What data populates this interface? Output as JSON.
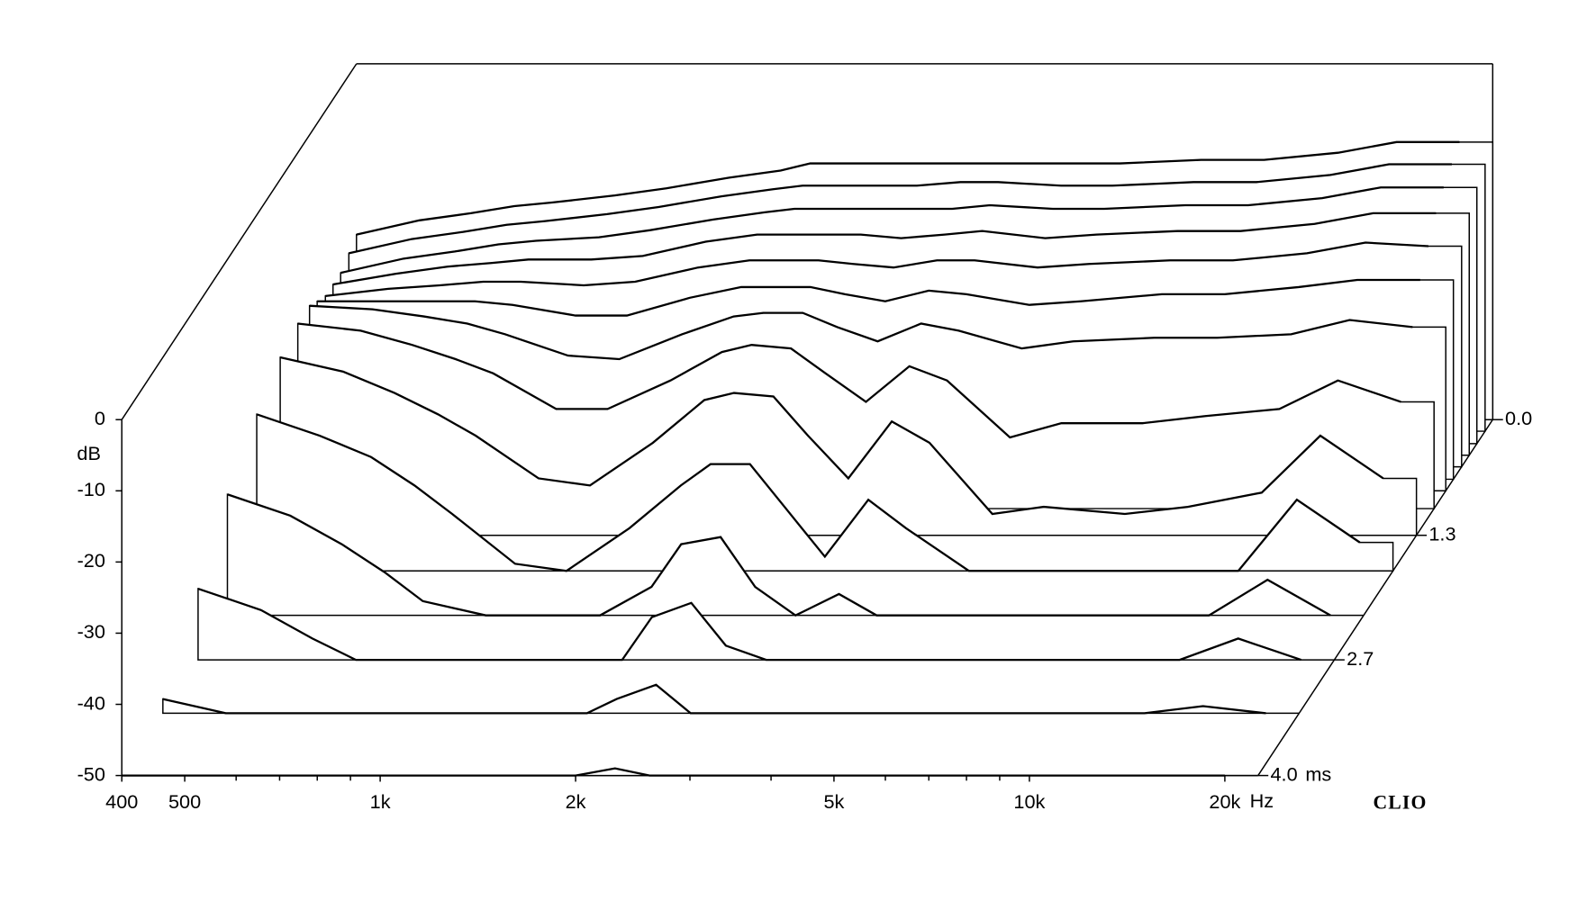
{
  "chart_data": {
    "type": "waterfall",
    "y_label": "dB",
    "x_unit": "Hz",
    "z_unit": "ms",
    "brand": "CLIO",
    "x": [
      400,
      500,
      600,
      700,
      800,
      1000,
      1200,
      1500,
      1800,
      2000,
      2300,
      2600,
      3000,
      3500,
      4000,
      5000,
      6000,
      8000,
      10000,
      13000,
      16000,
      20000
    ],
    "xlim": [
      400,
      22500
    ],
    "log_x": true,
    "xticks": [
      400,
      500,
      {
        "value": 1000,
        "label": "1k"
      },
      {
        "value": 2000,
        "label": "2k"
      },
      {
        "value": 5000,
        "label": "5k"
      },
      {
        "value": 10000,
        "label": "10k"
      },
      {
        "value": 20000,
        "label": "20k"
      }
    ],
    "xminorticks": [
      600,
      700,
      800,
      900,
      3000,
      4000,
      6000,
      7000,
      8000,
      9000
    ],
    "ylim": [
      -50,
      0
    ],
    "yticks": [
      0,
      -10,
      -20,
      -30,
      -40,
      -50
    ],
    "zlim": [
      0,
      4
    ],
    "zticks": [
      {
        "value": 0,
        "label": "0.0"
      },
      1.3,
      2.7,
      {
        "value": 4,
        "label": "4.0"
      }
    ],
    "color": "#000000",
    "series": [
      {
        "z": 0,
        "values": [
          -24,
          -22,
          -21,
          -20,
          -19.5,
          -18.5,
          -17.5,
          -16,
          -15,
          -14,
          -14,
          -14,
          -14,
          -14,
          -14,
          -14,
          -14,
          -13.5,
          -13.5,
          -12.5,
          -11,
          -11
        ]
      },
      {
        "z": 0.13,
        "values": [
          -25,
          -23,
          -22,
          -21,
          -20.5,
          -19.5,
          -18.5,
          -17,
          -16,
          -15.5,
          -15.5,
          -15.5,
          -15.5,
          -15,
          -15,
          -15.5,
          -15.5,
          -15,
          -15,
          -14,
          -12.5,
          -12.5
        ]
      },
      {
        "z": 0.27,
        "values": [
          -26,
          -24,
          -23,
          -22,
          -21.5,
          -21,
          -20,
          -18.5,
          -17.5,
          -17,
          -17,
          -17,
          -17,
          -17,
          -16.5,
          -17,
          -17,
          -16.5,
          -16.5,
          -15.5,
          -14,
          -14
        ]
      },
      {
        "z": 0.4,
        "values": [
          -26,
          -24.5,
          -23.5,
          -23,
          -22.5,
          -22.5,
          -22,
          -20,
          -19,
          -19,
          -19,
          -19,
          -19.5,
          -19,
          -18.5,
          -19.5,
          -19,
          -18.5,
          -18.5,
          -17.5,
          -16,
          -16
        ]
      },
      {
        "z": 0.53,
        "values": [
          -26,
          -25,
          -24.5,
          -24,
          -24,
          -24.5,
          -24,
          -22,
          -21,
          -21,
          -21,
          -21.5,
          -22,
          -21,
          -21,
          -22,
          -21.5,
          -21,
          -21,
          -20,
          -18.5,
          -19
        ]
      },
      {
        "z": 0.67,
        "values": [
          -25,
          -25,
          -25,
          -25,
          -25.5,
          -27,
          -27,
          -24.5,
          -23,
          -23,
          -23,
          -24,
          -25,
          -23.5,
          -24,
          -25.5,
          -25,
          -24,
          -24,
          -23,
          -22,
          -22
        ]
      },
      {
        "z": 0.8,
        "values": [
          -24,
          -24.5,
          -25.5,
          -26.5,
          -28,
          -31,
          -31.5,
          -28,
          -25.5,
          -25,
          -25,
          -27,
          -29,
          -26.5,
          -27.5,
          -30,
          -29,
          -28.5,
          -28.5,
          -28,
          -26,
          -27
        ]
      },
      {
        "z": 1.0,
        "values": [
          -24,
          -25,
          -27,
          -29,
          -31,
          -36,
          -36,
          -32,
          -28,
          -27,
          -27.5,
          -31,
          -35,
          -30,
          -32,
          -40,
          -38,
          -38,
          -37,
          -36,
          -32,
          -35
        ]
      },
      {
        "z": 1.3,
        "values": [
          -25,
          -27,
          -30,
          -33,
          -36,
          -42,
          -43,
          -37,
          -31,
          -30,
          -30.5,
          -36,
          -42,
          -34,
          -37,
          -47,
          -46,
          -47,
          -46,
          -44,
          -36,
          -42
        ]
      },
      {
        "z": 1.7,
        "values": [
          -28,
          -31,
          -34,
          -38,
          -42,
          -49,
          -50,
          -44,
          -38,
          -35,
          -35,
          -41,
          -48,
          -40,
          -44,
          -50,
          -50,
          -50,
          -50,
          -50,
          -40,
          -46
        ]
      },
      {
        "z": 2.2,
        "values": [
          -33,
          -36,
          -40,
          -44,
          -48,
          -50,
          -50,
          -50,
          -46,
          -40,
          -39,
          -46,
          -50,
          -47,
          -50,
          -50,
          -50,
          -50,
          -50,
          -50,
          -45,
          -50
        ]
      },
      {
        "z": 2.7,
        "values": [
          -40,
          -43,
          -47,
          -50,
          -50,
          -50,
          -50,
          -50,
          -50,
          -44,
          -42,
          -48,
          -50,
          -50,
          -50,
          -50,
          -50,
          -50,
          -50,
          -50,
          -47,
          -50
        ]
      },
      {
        "z": 3.3,
        "values": [
          -48,
          -50,
          -50,
          -50,
          -50,
          -50,
          -50,
          -50,
          -50,
          -48,
          -46,
          -50,
          -50,
          -50,
          -50,
          -50,
          -50,
          -50,
          -50,
          -50,
          -49,
          -50
        ]
      },
      {
        "z": 4.0,
        "values": [
          -50,
          -50,
          -50,
          -50,
          -50,
          -50,
          -50,
          -50,
          -50,
          -50,
          -49,
          -50,
          -50,
          -50,
          -50,
          -50,
          -50,
          -50,
          -50,
          -50,
          -50,
          -50
        ]
      }
    ]
  }
}
